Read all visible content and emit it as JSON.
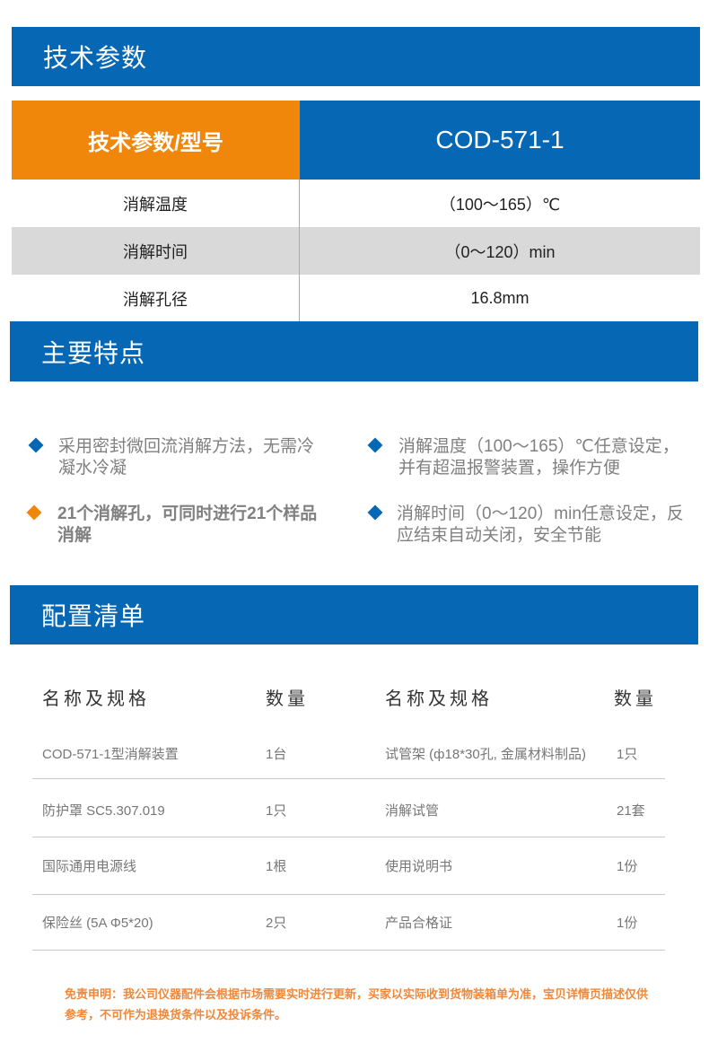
{
  "sections": {
    "tech": "技术参数",
    "features": "主要特点",
    "config": "配置清单"
  },
  "spec_table": {
    "header": [
      "技术参数/型号",
      "COD-571-1"
    ],
    "rows": [
      [
        "消解温度",
        "（100〜165）℃"
      ],
      [
        "消解时间",
        "（0〜120）min"
      ],
      [
        "消解孔径",
        "16.8mm"
      ]
    ]
  },
  "features": [
    {
      "text": "采用密封微回流消解方法，无需冷凝水冷凝",
      "icon": "diamond-icon",
      "color": "#0667b4"
    },
    {
      "text": "消解温度（100～165）℃任意设定，并有超温报警装置，操作方便",
      "icon": "diamond-icon",
      "color": "#0667b4"
    },
    {
      "text": "21个消解孔，可同时进行21个样品消解",
      "icon": "diamond-icon",
      "color": "#f0870a"
    },
    {
      "text": "消解时间（0～120）min任意设定，反应结束自动关闭，安全节能",
      "icon": "diamond-icon",
      "color": "#0667b4"
    }
  ],
  "config": {
    "headers": [
      "名称及规格",
      "数量",
      "名称及规格",
      "数量"
    ],
    "rows": [
      [
        "COD-571-1型消解装置",
        "1台",
        "试管架 (ф18*30孔, 金属材料制品)",
        "1只"
      ],
      [
        "防护罩 SC5.307.019",
        "1只",
        "消解试管",
        "21套"
      ],
      [
        "国际通用电源线",
        "1根",
        "使用说明书",
        "1份"
      ],
      [
        "保险丝 (5A Φ5*20)",
        "2只",
        "产品合格证",
        "1份"
      ]
    ]
  },
  "disclaimer": "免责申明：我公司仪器配件会根据市场需要实时进行更新，买家以实际收到货物装箱单为准，宝贝详情页描述仅供参考，不可作为退换货条件以及投诉条件。",
  "colors": {
    "blue": "#0667b4",
    "orange": "#f0870a"
  }
}
